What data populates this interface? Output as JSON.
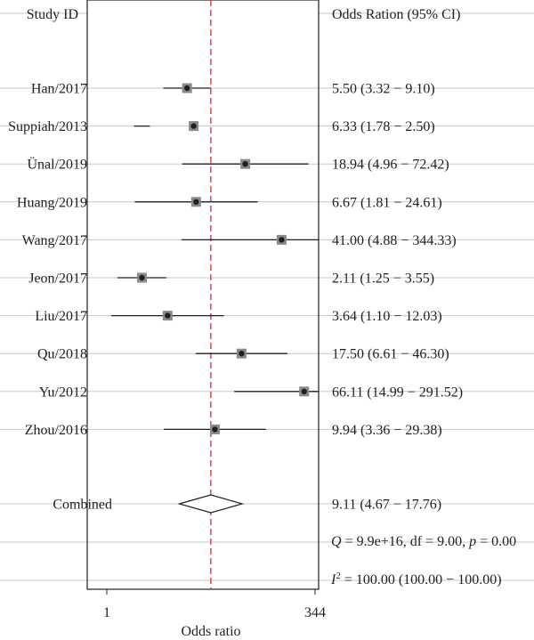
{
  "chart_data": {
    "type": "forest",
    "left_header": "Study ID",
    "right_header": "Odds Ration (95% CI)",
    "xlabel": "Odds ratio",
    "x_ticks": [
      "1",
      "344"
    ],
    "reference_line": "dashed vertical line",
    "studies": [
      {
        "label": "Han/2017",
        "ci_text": "5.50 (3.32 − 9.10)",
        "or": 5.5,
        "lo": 3.32,
        "hi": 9.1
      },
      {
        "label": "Suppiah/2013",
        "ci_text": "6.33 (1.78 − 2.50)",
        "or": 6.33,
        "lo": 1.78,
        "hi": 2.5
      },
      {
        "label": "Ünal/2019",
        "ci_text": "18.94 (4.96 − 72.42)",
        "or": 18.94,
        "lo": 4.96,
        "hi": 72.42
      },
      {
        "label": "Huang/2019",
        "ci_text": "6.67 (1.81 − 24.61)",
        "or": 6.67,
        "lo": 1.81,
        "hi": 24.61
      },
      {
        "label": "Wang/2017",
        "ci_text": "41.00 (4.88 − 344.33)",
        "or": 41.0,
        "lo": 4.88,
        "hi": 344.33
      },
      {
        "label": "Jeon/2017",
        "ci_text": "2.11 (1.25 − 3.55)",
        "or": 2.11,
        "lo": 1.25,
        "hi": 3.55
      },
      {
        "label": "Liu/2017",
        "ci_text": "3.64 (1.10 − 12.03)",
        "or": 3.64,
        "lo": 1.1,
        "hi": 12.03
      },
      {
        "label": "Qu/2018",
        "ci_text": "17.50 (6.61 − 46.30)",
        "or": 17.5,
        "lo": 6.61,
        "hi": 46.3
      },
      {
        "label": "Yu/2012",
        "ci_text": "66.11 (14.99 − 291.52)",
        "or": 66.11,
        "lo": 14.99,
        "hi": 291.52
      },
      {
        "label": "Zhou/2016",
        "ci_text": "9.94 (3.36 − 29.38)",
        "or": 9.94,
        "lo": 3.36,
        "hi": 29.38
      }
    ],
    "combined": {
      "label": "Combined",
      "ci_text": "9.11 (4.67 − 17.76)",
      "or": 9.11,
      "lo": 4.67,
      "hi": 17.76
    },
    "heterogeneity": {
      "q_sym": "Q",
      "q_rest": " = 9.9e+16, df = 9.00, ",
      "p_sym": "p",
      "p_rest": " = 0.00",
      "i2_sym": "I",
      "i2_sup": "2",
      "i2_rest": " = 100.00 (100.00 − 100.00)"
    },
    "colors": {
      "frame": "#231f20",
      "gridline": "#c8c8c8",
      "reference_line": "#d1495b",
      "marker_box": "#8a8a8a",
      "marker_dot": "#231f20"
    }
  }
}
